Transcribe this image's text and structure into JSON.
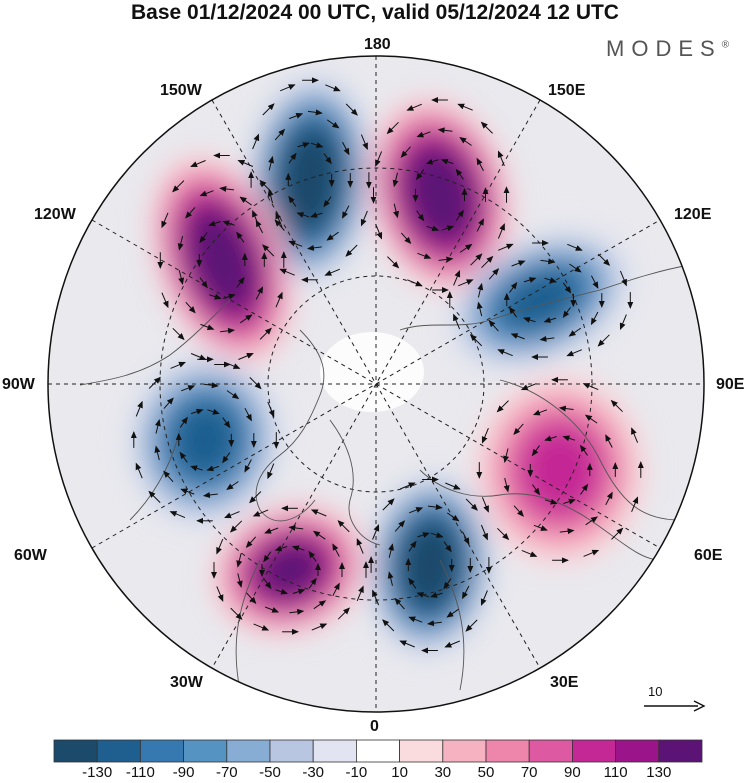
{
  "title": "Base 01/12/2024 00 UTC, valid 05/12/2024 12 UTC",
  "logo": "MODES",
  "logo_mark": "®",
  "longitude_labels": {
    "top": "180",
    "top_left": "150W",
    "top_right": "150E",
    "upper_left": "120W",
    "upper_right": "120E",
    "left": "90W",
    "right": "90E",
    "lower_left": "60W",
    "lower_right": "60E",
    "bottom_left": "30W",
    "bottom_right": "30E",
    "bottom": "0"
  },
  "reference_vector": {
    "label": "10"
  },
  "colorbar": {
    "colors": [
      "#1b4a6b",
      "#1f5f8f",
      "#3579b0",
      "#5593c3",
      "#88add4",
      "#b9c6e2",
      "#e2e4f1",
      "#ffffff",
      "#fadcde",
      "#f5b2c1",
      "#ee86ac",
      "#dd5aa2",
      "#c42895",
      "#9b1489",
      "#5b1376"
    ],
    "tick_labels": [
      "-130",
      "-110",
      "-90",
      "-70",
      "-50",
      "-30",
      "-10",
      "10",
      "30",
      "50",
      "70",
      "90",
      "110",
      "130"
    ]
  },
  "anomaly_centers": [
    {
      "sign": "negative",
      "lon_label": "180-150W",
      "level": -130
    },
    {
      "sign": "positive",
      "lon_label": "180-150E",
      "level": 130
    },
    {
      "sign": "negative",
      "lon_label": "120E",
      "level": -90
    },
    {
      "sign": "positive",
      "lon_label": "150W-120W",
      "level": 130
    },
    {
      "sign": "negative",
      "lon_label": "90W-60W",
      "level": -90
    },
    {
      "sign": "positive",
      "lon_label": "60E",
      "level": 70
    },
    {
      "sign": "positive",
      "lon_label": "30W",
      "level": 110
    },
    {
      "sign": "negative",
      "lon_label": "30E",
      "level": -130
    }
  ]
}
